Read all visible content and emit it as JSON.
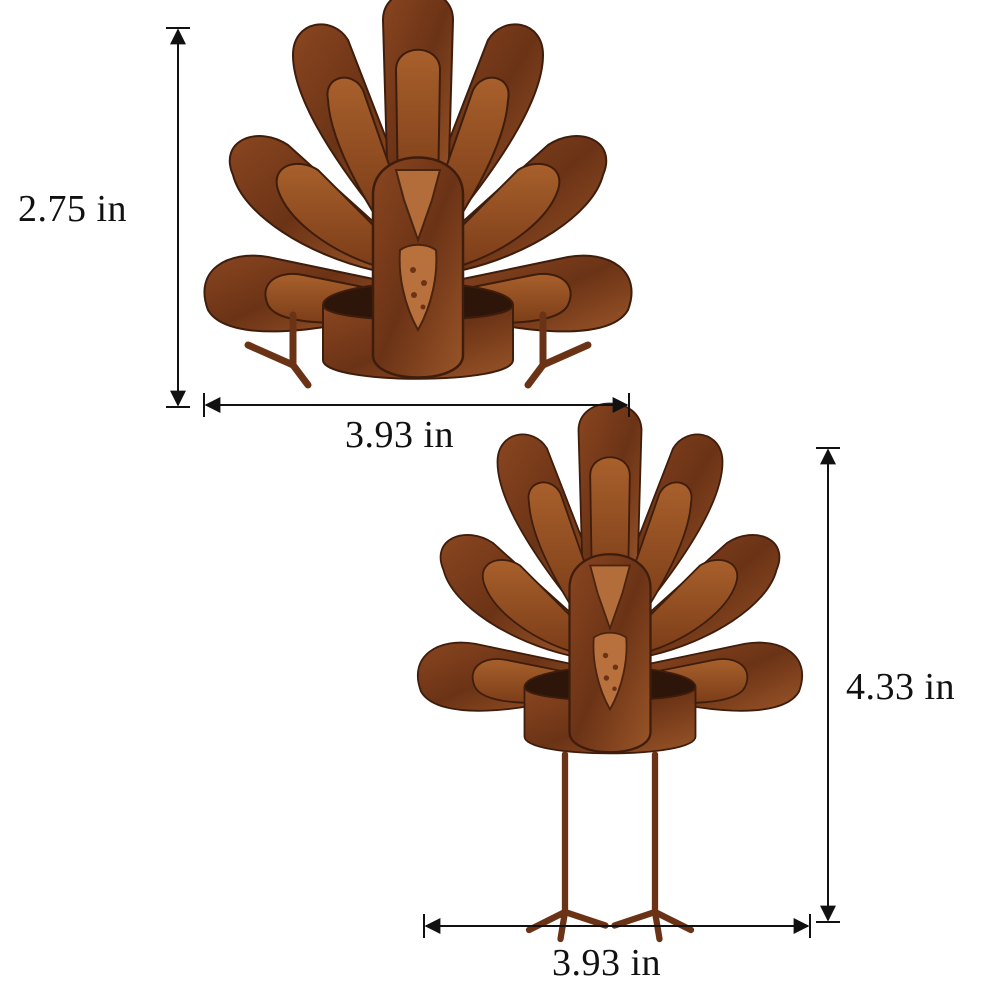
{
  "product": {
    "short_turkey": {
      "height_label": "2.75  in",
      "width_label": "3.93  in"
    },
    "tall_turkey": {
      "height_label": "4.33  in",
      "width_label": "3.93  in"
    }
  },
  "colors": {
    "background": "#ffffff",
    "metal_dark": "#4a2410",
    "metal_mid": "#7a3f1c",
    "metal_light": "#a45e2e",
    "dimension_line": "#111111"
  }
}
